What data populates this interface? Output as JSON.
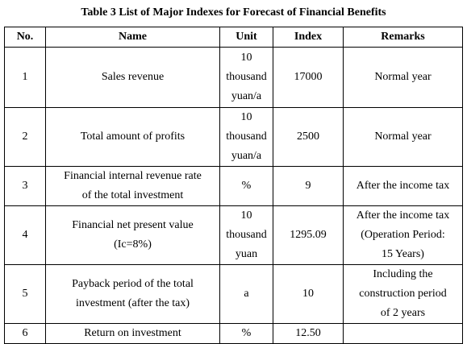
{
  "title": "Table 3 List of Major Indexes for Forecast of Financial Benefits",
  "table": {
    "header": [
      "No.",
      "Name",
      "Unit",
      "Index",
      "Remarks"
    ],
    "rows": [
      [
        "1",
        "Sales revenue",
        [
          "10",
          "thousand",
          "yuan/a"
        ],
        "17000",
        "Normal year"
      ],
      [
        "2",
        "Total amount of profits",
        [
          "10",
          "thousand",
          "yuan/a"
        ],
        "2500",
        "Normal year"
      ],
      [
        "3",
        [
          "Financial internal revenue rate",
          "of the total investment"
        ],
        "%",
        "9",
        "After the income tax"
      ],
      [
        "4",
        [
          "Financial net present value",
          "(Ic=8%)"
        ],
        [
          "10",
          "thousand",
          "yuan"
        ],
        "1295.09",
        [
          "After the income tax",
          "(Operation Period:",
          "15 Years)"
        ]
      ],
      [
        "5",
        [
          "Payback period of the total",
          "investment (after the tax)"
        ],
        "a",
        "10",
        [
          "Including the",
          "construction period",
          "of 2 years"
        ]
      ],
      [
        "6",
        "Return on investment",
        "%",
        "12.50",
        ""
      ]
    ]
  }
}
